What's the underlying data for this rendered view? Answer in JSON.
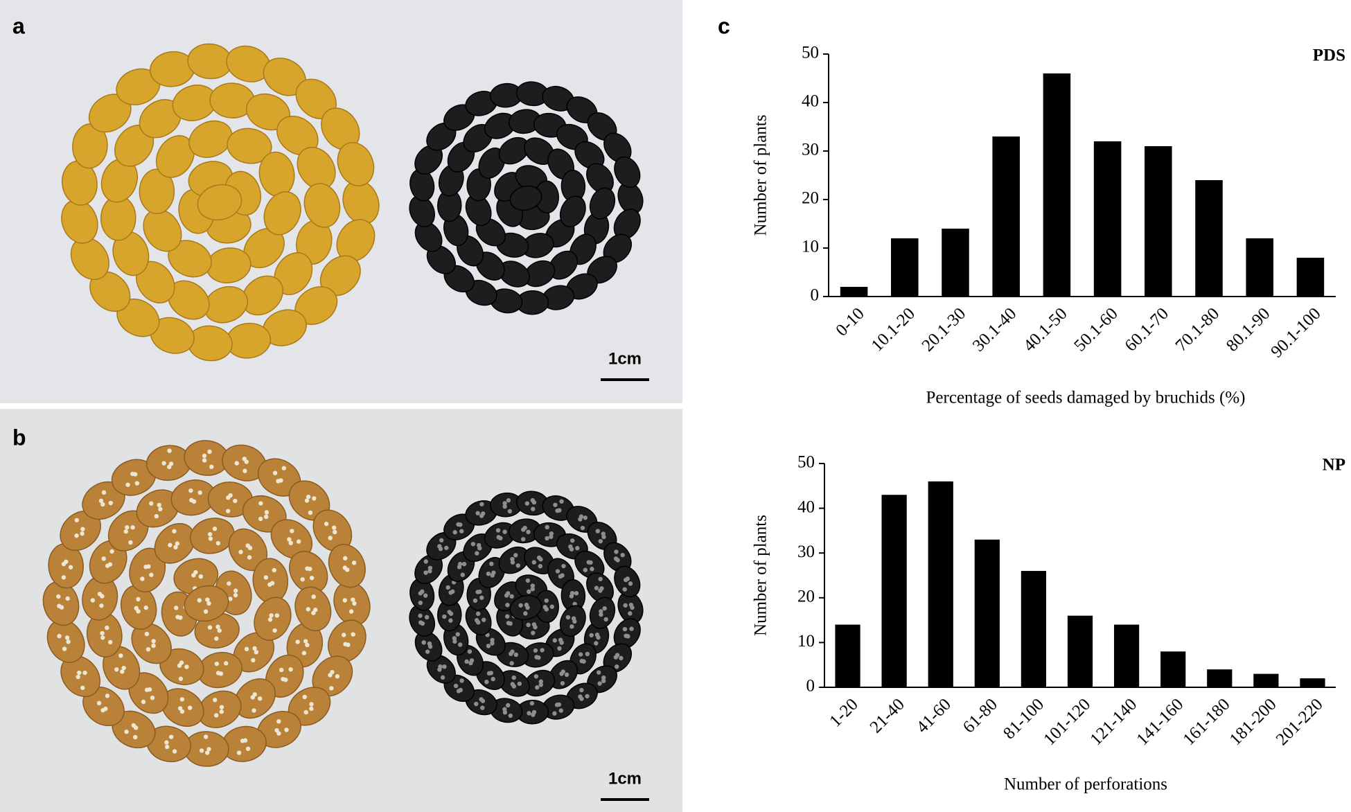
{
  "figure": {
    "panel_labels": [
      "a",
      "b",
      "c"
    ],
    "scale_bars": [
      "1cm",
      "1cm"
    ]
  },
  "chart_data": [
    {
      "type": "bar",
      "title": "PDS",
      "y_label": "Number of plants",
      "x_label": "Percentage of seeds damaged by bruchids (%)",
      "categories": [
        "0-10",
        "10.1-20",
        "20.1-30",
        "30.1-40",
        "40.1-50",
        "50.1-60",
        "60.1-70",
        "70.1-80",
        "80.1-90",
        "90.1-100"
      ],
      "values": [
        2,
        12,
        14,
        33,
        46,
        32,
        31,
        24,
        12,
        8
      ],
      "color": "#000000",
      "ylim": [
        0,
        50
      ],
      "yticks": [
        0,
        10,
        20,
        30,
        40,
        50
      ],
      "grid": false
    },
    {
      "type": "bar",
      "title": "NP",
      "y_label": "Number of plants",
      "x_label": "Number of perforations",
      "categories": [
        "1-20",
        "21-40",
        "41-60",
        "61-80",
        "81-100",
        "101-120",
        "121-140",
        "141-160",
        "161-180",
        "181-200",
        "201-220"
      ],
      "values": [
        14,
        43,
        46,
        33,
        26,
        16,
        14,
        8,
        4,
        3,
        2
      ],
      "color": "#000000",
      "ylim": [
        0,
        50
      ],
      "yticks": [
        0,
        10,
        20,
        30,
        40,
        50
      ],
      "grid": false
    }
  ]
}
